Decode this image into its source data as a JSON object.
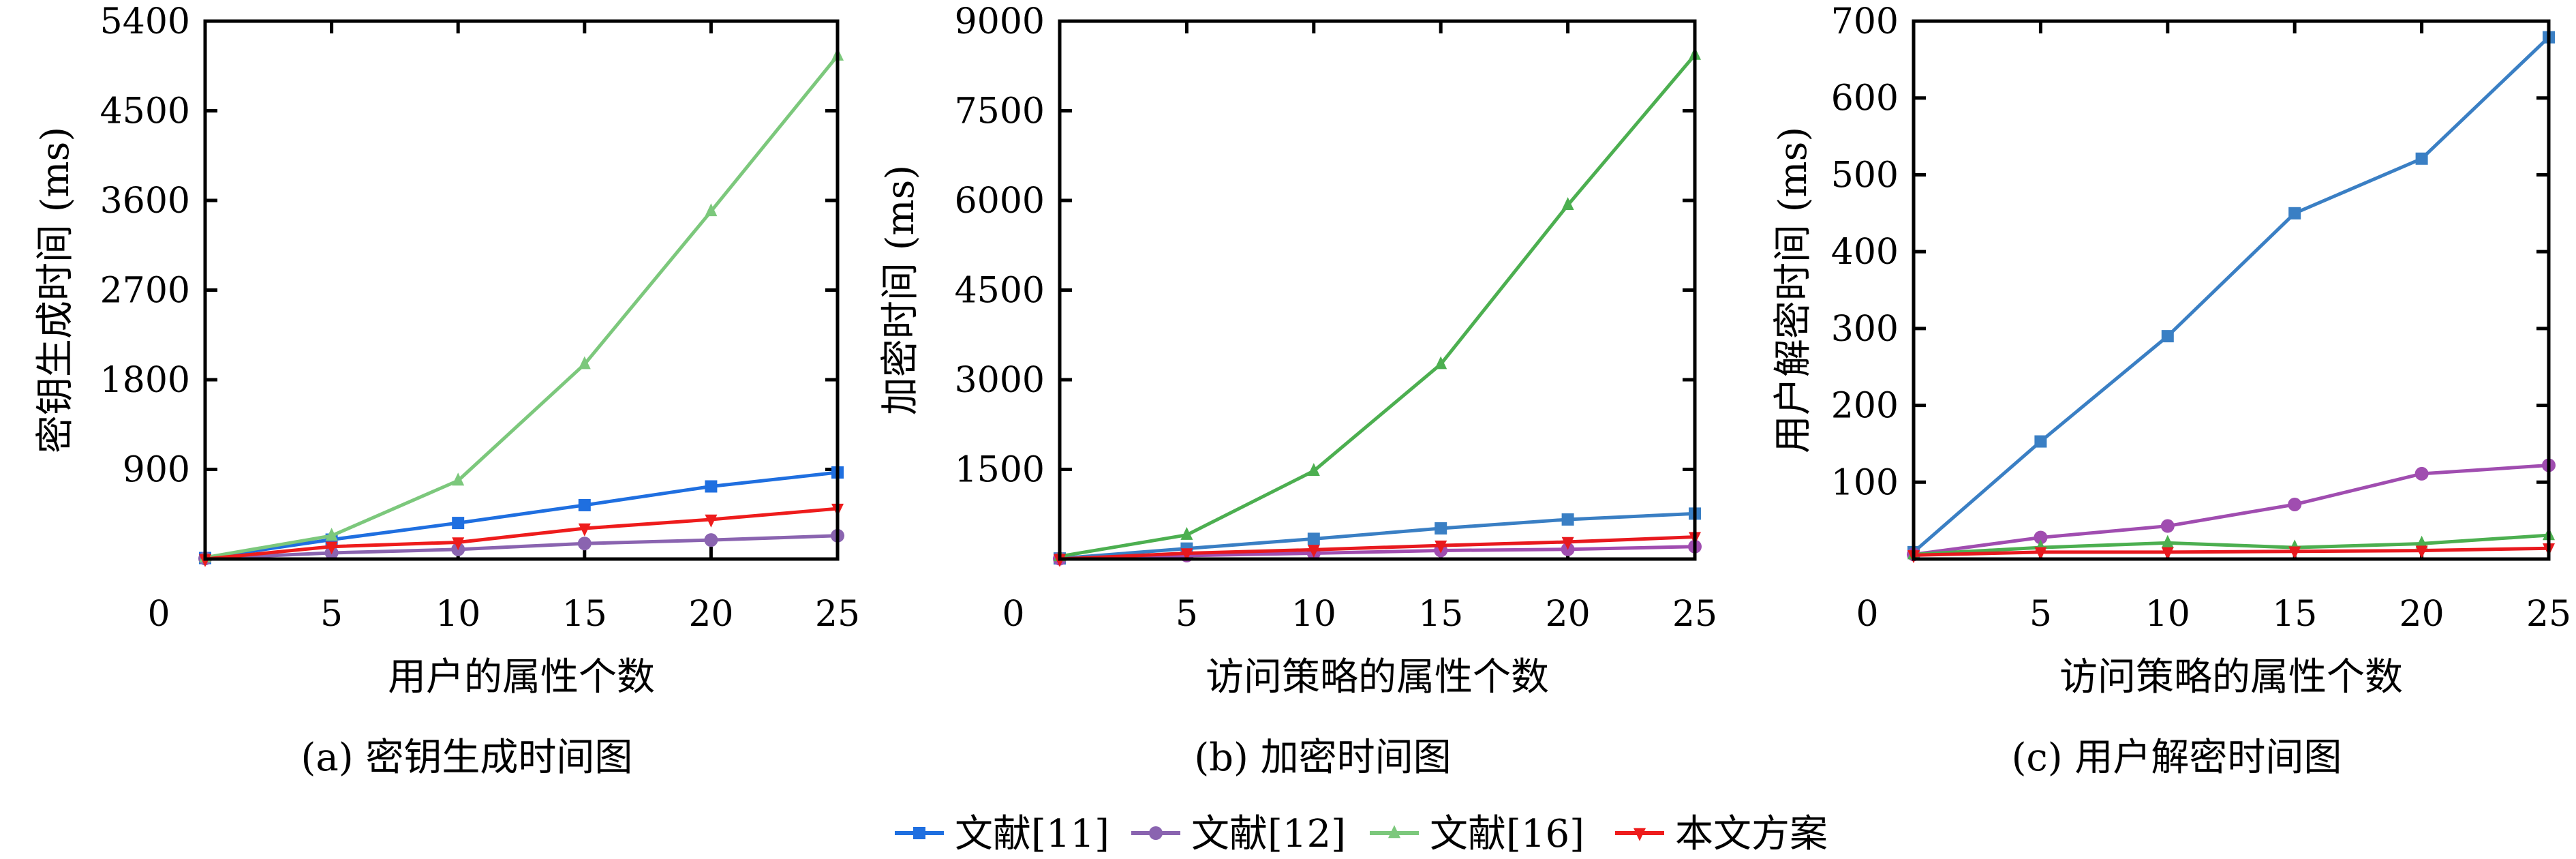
{
  "chart_data": [
    {
      "type": "line",
      "caption": "(a) 密钥生成时间图",
      "xlabel": "用户的属性个数",
      "ylabel": "密钥生成时间 (ms)",
      "xlim": [
        0,
        25
      ],
      "ylim": [
        0,
        5400
      ],
      "xticks": [
        "0",
        "5",
        "10",
        "15",
        "20",
        "25"
      ],
      "yticks": [
        "900",
        "1800",
        "2700",
        "3600",
        "4500",
        "5400"
      ],
      "x": [
        0,
        5,
        10,
        15,
        20,
        25
      ],
      "series": [
        {
          "name": "文献[11]",
          "marker": "square",
          "color": "#1f6fe0",
          "values": [
            10,
            195,
            362,
            541,
            729,
            869
          ]
        },
        {
          "name": "文献[12]",
          "marker": "circle",
          "color": "#8a64b0",
          "values": [
            5,
            62,
            97,
            156,
            191,
            234
          ]
        },
        {
          "name": "文献[16]",
          "marker": "triangle-up",
          "color": "#7cc87c",
          "values": [
            15,
            234,
            787,
            1956,
            3491,
            5053
          ]
        },
        {
          "name": "本文方案",
          "marker": "triangle-down",
          "color": "#ee1c1c",
          "values": [
            0,
            125,
            168,
            308,
            397,
            506
          ]
        }
      ]
    },
    {
      "type": "line",
      "caption": "(b) 加密时间图",
      "xlabel": "访问策略的属性个数",
      "ylabel": "加密时间 (ms)",
      "xlim": [
        0,
        25
      ],
      "ylim": [
        0,
        9000
      ],
      "xticks": [
        "0",
        "5",
        "10",
        "15",
        "20",
        "25"
      ],
      "yticks": [
        "1500",
        "3000",
        "4500",
        "6000",
        "7500",
        "9000"
      ],
      "x": [
        0,
        5,
        10,
        15,
        20,
        25
      ],
      "series": [
        {
          "name": "文献[11]",
          "marker": "square",
          "color": "#3a7fc4",
          "values": [
            10,
            175,
            338,
            513,
            662,
            760
          ]
        },
        {
          "name": "文献[12]",
          "marker": "circle",
          "color": "#a04db0",
          "values": [
            5,
            58,
            97,
            143,
            162,
            208
          ]
        },
        {
          "name": "文献[16]",
          "marker": "triangle-up",
          "color": "#4caf50",
          "values": [
            45,
            403,
            1474,
            3260,
            5922,
            8435
          ]
        },
        {
          "name": "本文方案",
          "marker": "triangle-down",
          "color": "#e8191e",
          "values": [
            0,
            97,
            156,
            227,
            286,
            370
          ]
        }
      ]
    },
    {
      "type": "line",
      "caption": "(c) 用户解密时间图",
      "xlabel": "访问策略的属性个数",
      "ylabel": "用户解密时间 (ms)",
      "xlim": [
        0,
        25
      ],
      "ylim": [
        0,
        700
      ],
      "xticks": [
        "0",
        "5",
        "10",
        "15",
        "20",
        "25"
      ],
      "yticks": [
        "100",
        "200",
        "300",
        "400",
        "500",
        "600",
        "700"
      ],
      "x": [
        0,
        5,
        10,
        15,
        20,
        25
      ],
      "series": [
        {
          "name": "文献[11]",
          "marker": "square",
          "color": "#3a7fc4",
          "values": [
            9,
            153,
            290,
            450,
            521,
            679
          ]
        },
        {
          "name": "文献[12]",
          "marker": "circle",
          "color": "#a04db0",
          "values": [
            6,
            28,
            43,
            71,
            111,
            122
          ]
        },
        {
          "name": "文献[16]",
          "marker": "triangle-up",
          "color": "#4caf50",
          "values": [
            6,
            15,
            21,
            15,
            20,
            31
          ]
        },
        {
          "name": "本文方案",
          "marker": "triangle-down",
          "color": "#e8191e",
          "values": [
            5,
            9,
            9,
            10,
            11,
            14
          ]
        }
      ]
    }
  ],
  "legend": {
    "placement": "bottom-center",
    "items": [
      {
        "label": "文献[11]",
        "marker": "square",
        "color": "#1f6fe0"
      },
      {
        "label": "文献[12]",
        "marker": "circle",
        "color": "#8a64b0"
      },
      {
        "label": "文献[16]",
        "marker": "triangle-up",
        "color": "#7cc87c"
      },
      {
        "label": "本文方案",
        "marker": "triangle-down",
        "color": "#ee1c1c"
      }
    ]
  }
}
